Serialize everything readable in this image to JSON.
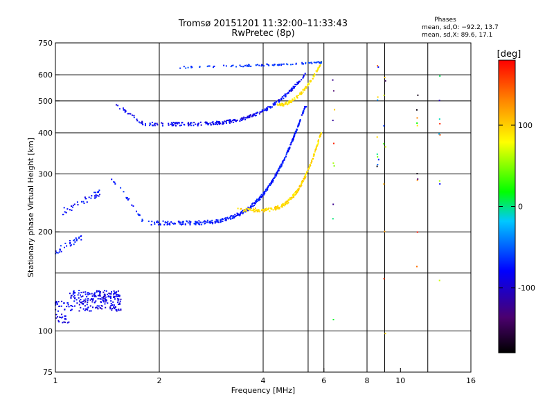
{
  "chart_data": {
    "type": "scatter",
    "title": "Tromsø 20151201 11:32:00–11:33:43",
    "subtitle": "RwPretec (8p)",
    "xlabel": "Frequency [MHz]",
    "ylabel": "Stationary phase Virtual Height [km]",
    "x_scale": "log",
    "y_scale": "log",
    "xlim": [
      1,
      16
    ],
    "ylim": [
      75,
      750
    ],
    "x_ticks": [
      1,
      2,
      4,
      6,
      8,
      10,
      16
    ],
    "y_ticks": [
      75,
      100,
      200,
      300,
      400,
      500,
      600,
      750
    ],
    "x_gridlines": [
      2,
      4,
      5.4,
      6,
      8,
      9,
      12
    ],
    "y_gridlines": [
      100,
      150,
      200,
      300,
      400,
      500,
      600
    ],
    "phase_box": {
      "heading": "Phases",
      "line_o": "mean, sd,O: −92.2, 13.7",
      "line_x": "mean, sd,X:  89.6, 17.1"
    },
    "colorbar": {
      "label": "[deg]",
      "range": [
        -180,
        180
      ],
      "ticks": [
        -100,
        0,
        100
      ],
      "colors": [
        "#000000",
        "#4b006e",
        "#0000ff",
        "#00c8ff",
        "#00ff00",
        "#ffff00",
        "#ff8800",
        "#ff0000"
      ]
    },
    "series": [
      {
        "trace": "low-scatter",
        "x_start": 1.0,
        "x_end": 1.55,
        "y_start": 115,
        "y_end": 128,
        "phase": -105
      },
      {
        "trace": "sporadic-low",
        "x_start": 1.0,
        "x_end": 1.2,
        "y_start": 170,
        "y_end": 190,
        "phase": -90
      },
      {
        "trace": "sporadic-mid",
        "x_start": 1.05,
        "x_end": 1.35,
        "y_start": 225,
        "y_end": 260,
        "phase": -95
      },
      {
        "trace": "F2-ordinary",
        "x_start": 1.45,
        "x_end": 5.35,
        "y_min": 210,
        "y_end": 480,
        "phase": -92
      },
      {
        "trace": "F2-extraordinary",
        "x_start": 3.3,
        "x_end": 5.9,
        "y_min": 230,
        "y_end": 400,
        "phase": 95
      },
      {
        "trace": "upper-ordinary",
        "x_start": 1.5,
        "x_end": 5.3,
        "y_min": 420,
        "y_end": 600,
        "phase": -100
      },
      {
        "trace": "upper-extraordinary",
        "x_start": 4.4,
        "x_end": 5.9,
        "y_min": 480,
        "y_end": 650,
        "phase": 90
      },
      {
        "trace": "top-band",
        "x_start": 2.3,
        "x_end": 5.9,
        "y_start": 625,
        "y_end": 660,
        "phase": -80
      }
    ]
  }
}
